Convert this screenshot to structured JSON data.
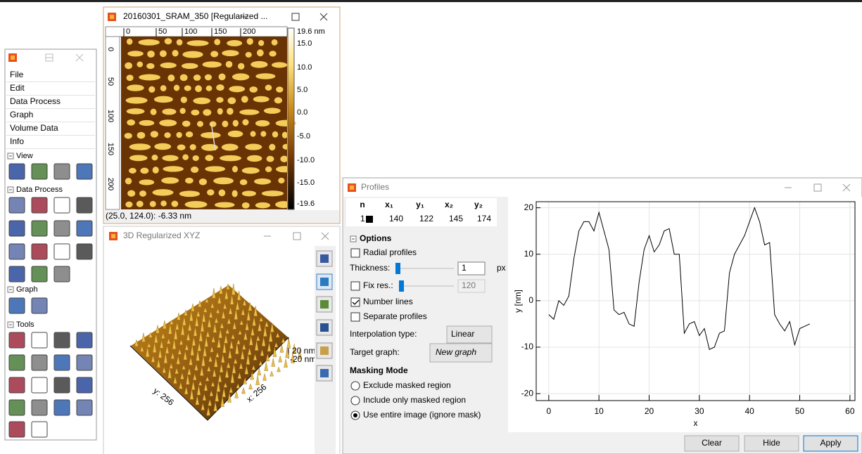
{
  "main_window": {
    "menu": [
      "File",
      "Edit",
      "Data Process",
      "Graph",
      "Volume Data",
      "Info"
    ],
    "sections": [
      "View",
      "Data Process",
      "Graph",
      "Tools"
    ]
  },
  "image_window": {
    "title": "20160301_SRAM_350 [Regularized ...",
    "x_ruler": [
      "0",
      "50",
      "100",
      "150",
      "200"
    ],
    "y_ruler": [
      "0",
      "50",
      "100",
      "150",
      "200"
    ],
    "scale": [
      "19.6 nm",
      "15.0",
      "10.0",
      "5.0",
      "0.0",
      "-5.0",
      "-10.0",
      "-15.0",
      "-19.6"
    ],
    "status": "(25.0, 124.0): -6.33 nm"
  },
  "view3d_window": {
    "title": "3D Regularized XYZ",
    "y_axis": "y: 256",
    "x_axis": "x: 256",
    "z_max": "20 nm",
    "z_min": "-20 nm"
  },
  "profiles_window": {
    "title": "Profiles",
    "table": {
      "header": [
        "n",
        "x₁",
        "y₁",
        "x₂",
        "y₂"
      ],
      "rows": [
        [
          "1",
          "140",
          "122",
          "145",
          "174"
        ]
      ]
    },
    "options_title": "Options",
    "radial_profiles": "Radial profiles",
    "thickness_label": "Thickness:",
    "thickness_value": "1",
    "thickness_unit": "px",
    "fix_res_label": "Fix res.:",
    "fix_res_value": "120",
    "number_lines": "Number lines",
    "separate_profiles": "Separate profiles",
    "interpolation_label": "Interpolation type:",
    "interpolation_value": "Linear",
    "target_label": "Target graph:",
    "target_value": "New graph",
    "masking_title": "Masking Mode",
    "masking_options": [
      "Exclude masked region",
      "Include only masked region",
      "Use entire image (ignore mask)"
    ],
    "buttons": [
      "Clear",
      "Hide",
      "Apply"
    ],
    "chart_data": {
      "type": "line",
      "x_label": "x",
      "y_label": "y [nm]",
      "x": [
        0,
        1,
        2,
        3,
        4,
        5,
        6,
        7,
        8,
        9,
        10,
        11,
        12,
        13,
        14,
        15,
        16,
        17,
        18,
        19,
        20,
        21,
        22,
        23,
        24,
        25,
        26,
        27,
        28,
        29,
        30,
        31,
        32,
        33,
        34,
        35,
        36,
        37,
        38,
        39,
        40,
        41,
        42,
        43,
        44,
        45,
        46,
        47,
        48,
        49,
        50,
        51,
        52
      ],
      "values": [
        -3,
        -4,
        0,
        -1,
        1,
        9,
        15,
        17,
        17,
        15,
        19,
        15,
        11,
        -2,
        -3,
        -2.5,
        -5,
        -5.5,
        4,
        11,
        14,
        10.5,
        12,
        15,
        15.5,
        10,
        10,
        -7,
        -5,
        -4.5,
        -7.5,
        -6,
        -10.5,
        -10,
        -7,
        -6.5,
        6,
        10,
        12,
        14,
        17,
        20,
        17,
        12,
        12.5,
        -3,
        -5,
        -6.5,
        -4.5,
        -9.5,
        -6,
        -5.5,
        -5
      ],
      "color": "#000000",
      "xlim": [
        -2.5,
        61
      ],
      "ylim": [
        -21.5,
        21.3
      ],
      "xticks": [
        0,
        10,
        20,
        30,
        40,
        50,
        60
      ],
      "yticks": [
        -20,
        -10,
        0,
        10,
        20
      ],
      "grid": true
    }
  }
}
